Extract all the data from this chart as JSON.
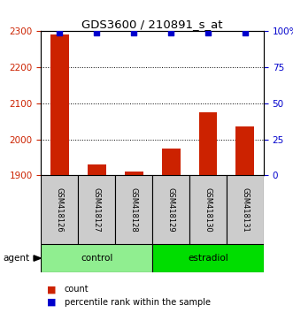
{
  "title": "GDS3600 / 210891_s_at",
  "samples": [
    "GSM418126",
    "GSM418127",
    "GSM418128",
    "GSM418129",
    "GSM418130",
    "GSM418131"
  ],
  "counts": [
    2290,
    1930,
    1910,
    1975,
    2075,
    2035
  ],
  "percentiles": [
    99,
    99,
    99,
    99,
    99,
    99
  ],
  "groups": [
    {
      "label": "control",
      "start": 0,
      "end": 2,
      "color": "#90EE90"
    },
    {
      "label": "estradiol",
      "start": 3,
      "end": 5,
      "color": "#00DD00"
    }
  ],
  "ylim_left": [
    1900,
    2300
  ],
  "ylim_right": [
    0,
    100
  ],
  "yticks_left": [
    1900,
    2000,
    2100,
    2200,
    2300
  ],
  "yticks_right": [
    0,
    25,
    50,
    75,
    100
  ],
  "yticklabels_right": [
    "0",
    "25",
    "50",
    "75",
    "100%"
  ],
  "bar_color": "#CC2200",
  "point_color": "#0000CC",
  "bar_width": 0.5,
  "background_color": "#ffffff",
  "plot_bg_color": "#ffffff",
  "grid_color": "#000000",
  "sample_box_color": "#CCCCCC",
  "group_label_agent": "agent",
  "legend_count_label": "count",
  "legend_percentile_label": "percentile rank within the sample"
}
